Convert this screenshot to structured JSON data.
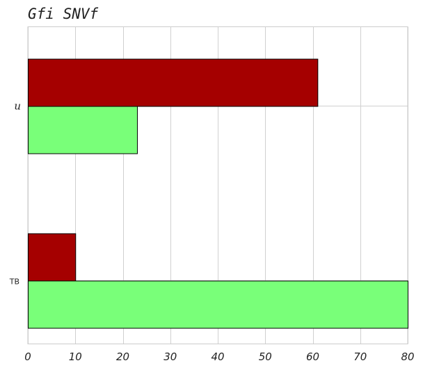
{
  "chart_data": {
    "type": "bar",
    "orientation": "horizontal",
    "title": "Gfi SNVf",
    "xlabel": "",
    "ylabel": "",
    "categories": [
      "u",
      "TB"
    ],
    "series": [
      {
        "values": [
          61,
          10
        ],
        "color": "#a50000"
      },
      {
        "values": [
          23,
          80
        ],
        "color": "#79ff79"
      }
    ],
    "xlim": [
      0,
      80
    ],
    "x_ticks": [
      0,
      10,
      20,
      30,
      40,
      50,
      60,
      70,
      80
    ],
    "x_tick_labels": [
      "0",
      "10",
      "20",
      "30",
      "40",
      "50",
      "60",
      "70",
      "80"
    ],
    "grid": true,
    "legend": "none"
  }
}
